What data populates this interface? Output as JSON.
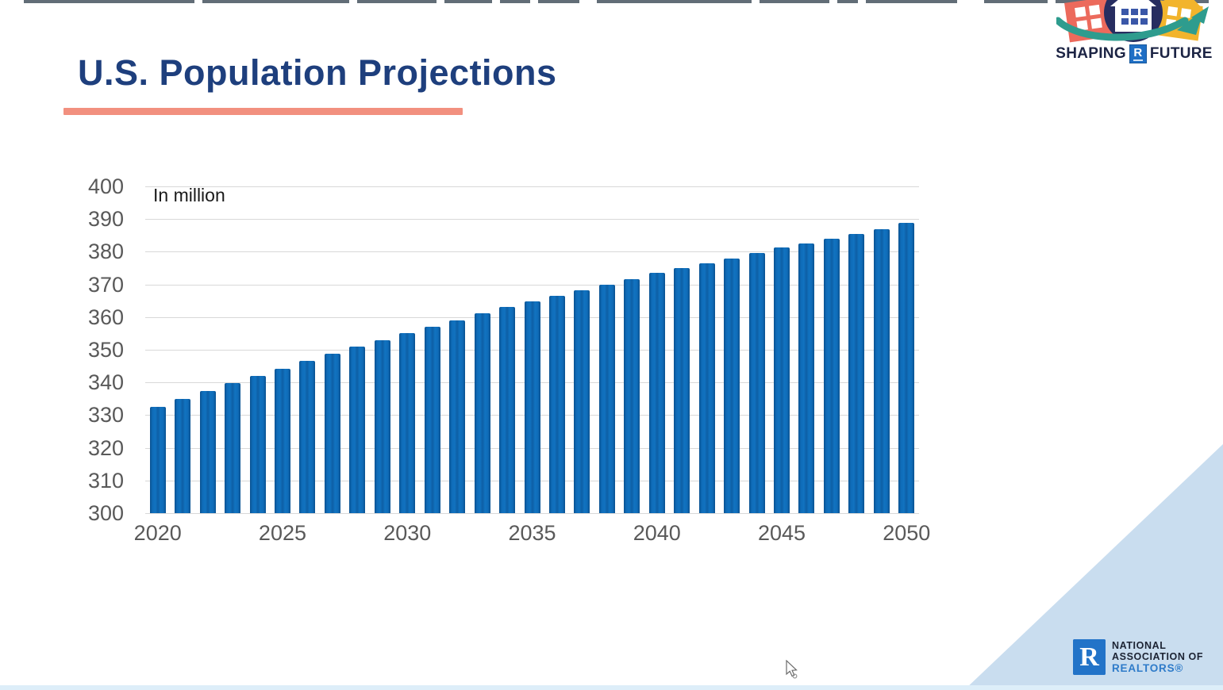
{
  "slide": {
    "title": "U.S. Population Projections",
    "title_color": "#1e3f7d",
    "accent_color": "#f2907f",
    "background_color": "#ffffff",
    "corner_triangle_color": "#c9ddef"
  },
  "header_logo": {
    "word1": "SHAPING",
    "word2": "FUTURE",
    "r_chip": "R"
  },
  "footer_logo": {
    "line1": "NATIONAL",
    "line2": "ASSOCIATION OF",
    "line3": "REALTORS®",
    "r_mark": "R",
    "square_color": "#2273c8"
  },
  "chart_data": {
    "type": "bar",
    "title": "",
    "annotation": "In million",
    "xlabel": "",
    "ylabel": "",
    "ylim": [
      300,
      400
    ],
    "ytick_labels": [
      "400",
      "390",
      "380",
      "370",
      "360",
      "350",
      "340",
      "330",
      "320",
      "310",
      "300"
    ],
    "xtick_labels": [
      "2020",
      "2025",
      "2030",
      "2035",
      "2040",
      "2045",
      "2050"
    ],
    "grid": true,
    "bar_color": "#1068b3",
    "x": [
      2020,
      2021,
      2022,
      2023,
      2024,
      2025,
      2026,
      2027,
      2028,
      2029,
      2030,
      2031,
      2032,
      2033,
      2034,
      2035,
      2036,
      2037,
      2038,
      2039,
      2040,
      2041,
      2042,
      2043,
      2044,
      2045,
      2046,
      2047,
      2048,
      2049,
      2050
    ],
    "values": [
      332.6,
      335.0,
      337.3,
      339.7,
      342.0,
      344.2,
      346.5,
      348.7,
      350.9,
      353.0,
      355.1,
      357.1,
      359.1,
      361.1,
      363.0,
      364.9,
      366.6,
      368.3,
      370.0,
      371.6,
      373.5,
      374.9,
      376.4,
      378.0,
      379.5,
      381.4,
      382.5,
      384.0,
      385.4,
      386.8,
      388.9
    ]
  }
}
